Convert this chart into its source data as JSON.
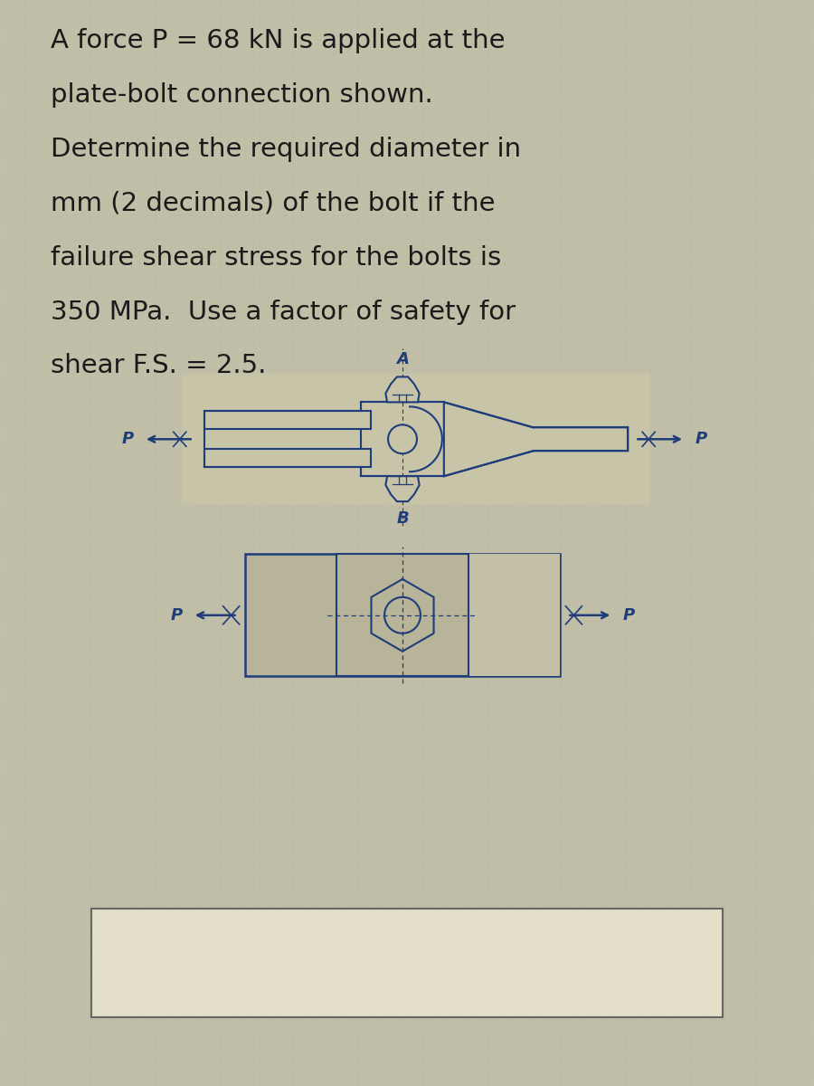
{
  "bg_color": "#c2bfa8",
  "grid_color": "#b8b59e",
  "text_color": "#1a1a1a",
  "drawing_color": "#1f3d7a",
  "diagram_fill": "#c8c4a8",
  "title_lines": [
    "A force P = 68 kN is applied at the",
    "plate-bolt connection shown.",
    "Determine the required diameter in",
    "mm (2 decimals) of the bolt if the",
    "failure shear stress for the bolts is",
    "350 MPa.  Use a factor of safety for",
    "shear F.S. = 2.5."
  ],
  "title_fontsize": 21,
  "label_A": "A",
  "label_B": "B",
  "label_P": "P",
  "fig_width": 9.0,
  "fig_height": 12.0
}
